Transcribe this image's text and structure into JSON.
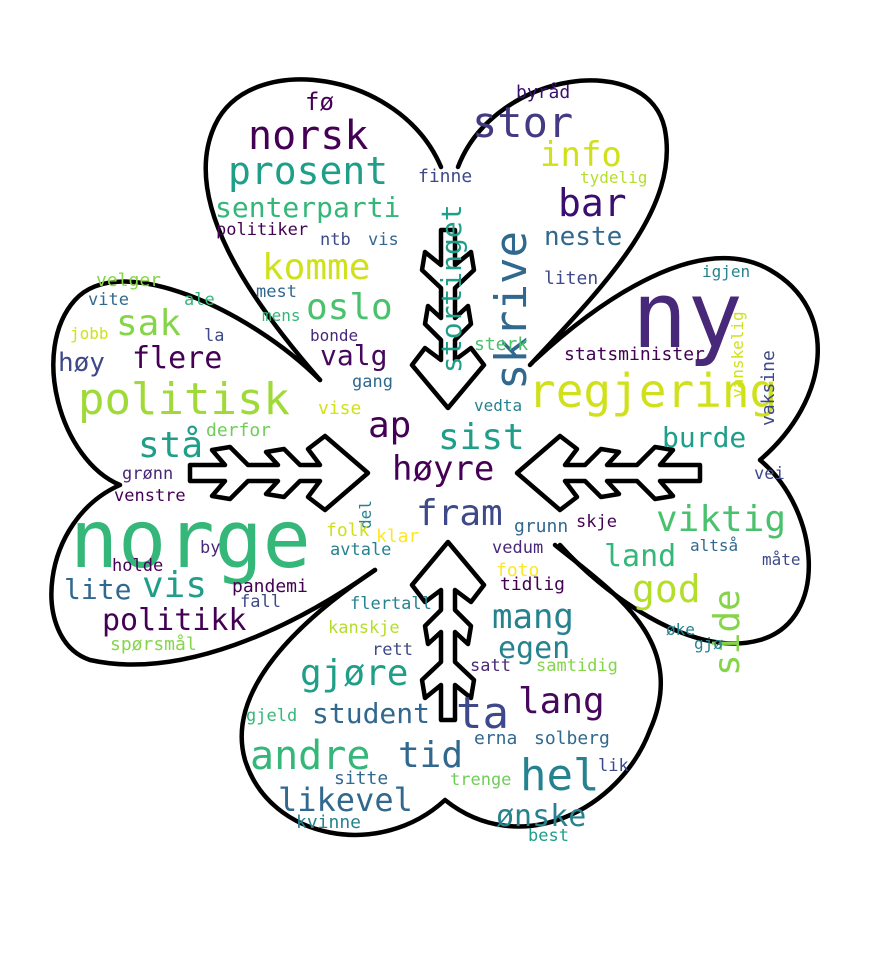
{
  "shape_colors": {
    "outline": "#000000",
    "background": "#ffffff"
  },
  "palette": [
    "#440154",
    "#482878",
    "#3e4989",
    "#31688e",
    "#26828e",
    "#1f9e89",
    "#35b779",
    "#6ece58",
    "#b5de2b",
    "#fde725"
  ],
  "words": [
    {
      "text": "norge",
      "color": "#35b779"
    },
    {
      "text": "ny",
      "color": "#482878"
    },
    {
      "text": "regjering",
      "color": "#d0e11c"
    },
    {
      "text": "politisk",
      "color": "#a0da39"
    },
    {
      "text": "stor",
      "color": "#443a83"
    },
    {
      "text": "norsk",
      "color": "#440154"
    },
    {
      "text": "prosent",
      "color": "#1f9e89"
    },
    {
      "text": "info",
      "color": "#d0e11c"
    },
    {
      "text": "skrive",
      "color": "#31688e"
    },
    {
      "text": "bar",
      "color": "#3b0f70"
    },
    {
      "text": "senterparti",
      "color": "#35b779"
    },
    {
      "text": "komme",
      "color": "#d0e11c"
    },
    {
      "text": "oslo",
      "color": "#4ac16d"
    },
    {
      "text": "sak",
      "color": "#86d549"
    },
    {
      "text": "flere",
      "color": "#440154"
    },
    {
      "text": "høy",
      "color": "#3e4989"
    },
    {
      "text": "valg",
      "color": "#46085c"
    },
    {
      "text": "stortinget",
      "color": "#1f9e89"
    },
    {
      "text": "neste",
      "color": "#31688e"
    },
    {
      "text": "fø",
      "color": "#440154"
    },
    {
      "text": "byråd",
      "color": "#3b0f70"
    },
    {
      "text": "finne",
      "color": "#3e4989"
    },
    {
      "text": "tydelig",
      "color": "#b5de2b"
    },
    {
      "text": "politiker",
      "color": "#440154"
    },
    {
      "text": "ntb",
      "color": "#3e4989"
    },
    {
      "text": "vis",
      "color": "#31688e"
    },
    {
      "text": "liten",
      "color": "#3e4989"
    },
    {
      "text": "igjen",
      "color": "#26828e"
    },
    {
      "text": "vanskelig",
      "color": "#d0e11c"
    },
    {
      "text": "vaksine",
      "color": "#3e4989"
    },
    {
      "text": "statsminister",
      "color": "#440154"
    },
    {
      "text": "velger",
      "color": "#86d549"
    },
    {
      "text": "vite",
      "color": "#31688e"
    },
    {
      "text": "ale",
      "color": "#35b779"
    },
    {
      "text": "jobb",
      "color": "#d0e11c"
    },
    {
      "text": "la",
      "color": "#3e4989"
    },
    {
      "text": "mest",
      "color": "#31688e"
    },
    {
      "text": "mens",
      "color": "#35b779"
    },
    {
      "text": "bonde",
      "color": "#482878"
    },
    {
      "text": "sterk",
      "color": "#4ac16d"
    },
    {
      "text": "gang",
      "color": "#31688e"
    },
    {
      "text": "vise",
      "color": "#d0e11c"
    },
    {
      "text": "vedta",
      "color": "#26828e"
    },
    {
      "text": "ap",
      "color": "#440154"
    },
    {
      "text": "sist",
      "color": "#1f9e89"
    },
    {
      "text": "burde",
      "color": "#1f9e89"
    },
    {
      "text": "stå",
      "color": "#1f9e89"
    },
    {
      "text": "derfor",
      "color": "#6ece58"
    },
    {
      "text": "høyre",
      "color": "#440154"
    },
    {
      "text": "grønn",
      "color": "#482878"
    },
    {
      "text": "vei",
      "color": "#3e4989"
    },
    {
      "text": "venstre",
      "color": "#440154"
    },
    {
      "text": "fram",
      "color": "#3e4989"
    },
    {
      "text": "viktig",
      "color": "#4ac16d"
    },
    {
      "text": "del",
      "color": "#26828e"
    },
    {
      "text": "folk",
      "color": "#d0e11c"
    },
    {
      "text": "klar",
      "color": "#fde725"
    },
    {
      "text": "grunn",
      "color": "#31688e"
    },
    {
      "text": "skje",
      "color": "#440154"
    },
    {
      "text": "holde",
      "color": "#440154"
    },
    {
      "text": "by",
      "color": "#482878"
    },
    {
      "text": "avtale",
      "color": "#26828e"
    },
    {
      "text": "vedum",
      "color": "#482878"
    },
    {
      "text": "land",
      "color": "#35b779"
    },
    {
      "text": "altså",
      "color": "#31688e"
    },
    {
      "text": "måte",
      "color": "#3e4989"
    },
    {
      "text": "lite",
      "color": "#31688e"
    },
    {
      "text": "vis",
      "color": "#1f9e89"
    },
    {
      "text": "pandemi",
      "color": "#440154"
    },
    {
      "text": "foto",
      "color": "#fde725"
    },
    {
      "text": "tidlig",
      "color": "#440154"
    },
    {
      "text": "god",
      "color": "#b5de2b"
    },
    {
      "text": "side",
      "color": "#86d549"
    },
    {
      "text": "fall",
      "color": "#3e4989"
    },
    {
      "text": "politikk",
      "color": "#440154"
    },
    {
      "text": "flertall",
      "color": "#26828e"
    },
    {
      "text": "mang",
      "color": "#26828e"
    },
    {
      "text": "spørsmål",
      "color": "#86d549"
    },
    {
      "text": "kanskje",
      "color": "#b5de2b"
    },
    {
      "text": "øke",
      "color": "#26828e"
    },
    {
      "text": "egen",
      "color": "#26828e"
    },
    {
      "text": "gjø",
      "color": "#26828e"
    },
    {
      "text": "rett",
      "color": "#3e4989"
    },
    {
      "text": "satt",
      "color": "#482878"
    },
    {
      "text": "samtidig",
      "color": "#86d549"
    },
    {
      "text": "gjøre",
      "color": "#1f9e89"
    },
    {
      "text": "lang",
      "color": "#46085c"
    },
    {
      "text": "gjeld",
      "color": "#35b779"
    },
    {
      "text": "student",
      "color": "#31688e"
    },
    {
      "text": "ta",
      "color": "#3e4989"
    },
    {
      "text": "andre",
      "color": "#35b779"
    },
    {
      "text": "tid",
      "color": "#31688e"
    },
    {
      "text": "erna",
      "color": "#31688e"
    },
    {
      "text": "solberg",
      "color": "#31688e"
    },
    {
      "text": "hel",
      "color": "#26828e"
    },
    {
      "text": "lik",
      "color": "#3e4989"
    },
    {
      "text": "sitte",
      "color": "#31688e"
    },
    {
      "text": "trenge",
      "color": "#6ece58"
    },
    {
      "text": "likevel",
      "color": "#31688e"
    },
    {
      "text": "ønske",
      "color": "#26828e"
    },
    {
      "text": "kvinne",
      "color": "#26828e"
    },
    {
      "text": "best",
      "color": "#1f9e89"
    }
  ]
}
